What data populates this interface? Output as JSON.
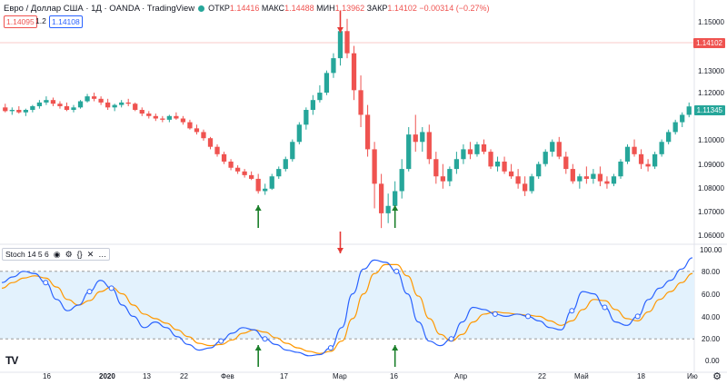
{
  "header": {
    "symbol_title": "Евро / Доллар США · 1Д · OANDA · TradingView",
    "ohlc": [
      {
        "label": "ОТКР",
        "value": "1.14416"
      },
      {
        "label": "МАКС",
        "value": "1.14488"
      },
      {
        "label": "МИН",
        "value": "1.13962"
      },
      {
        "label": "ЗАКР",
        "value": "1.14102"
      }
    ],
    "change": "−0.00314 (−0.27%)"
  },
  "trade": {
    "sell_price": "1.14095",
    "quantity": "1.2",
    "buy_price": "1.14108"
  },
  "price_axis": {
    "ticks": [
      "1.15000",
      "1.13000",
      "1.12000",
      "1.11000",
      "1.10000",
      "1.09000",
      "1.08000",
      "1.07000",
      "1.06000"
    ]
  },
  "price_labels": {
    "last_red": "1.14102",
    "current_green": "1.11345"
  },
  "indicator": {
    "label": "Stoch 14 5 6"
  },
  "stoch_axis": {
    "ticks": [
      "100.00",
      "80.00",
      "60.00",
      "40.00",
      "20.00",
      "0.00"
    ]
  },
  "time_axis": {
    "labels": [
      "16",
      "2020",
      "13",
      "22",
      "Фев",
      "17",
      "Мар",
      "16",
      "Апр",
      "22",
      "Май",
      "18",
      "Ию"
    ]
  },
  "colors": {
    "up": "#26a69a",
    "down": "#ef5350",
    "k_line": "#2962ff",
    "d_line": "#ff9800",
    "band": "#e3f2fd",
    "arrow_red": "#e53935",
    "arrow_green": "#1b7f2a"
  },
  "chart_data": [
    {
      "type": "candlestick",
      "title": "Евро / Доллар США · 1Д · OANDA",
      "ylim": [
        1.06,
        1.15
      ],
      "candles": [
        {
          "o": 1.113,
          "h": 1.1145,
          "l": 1.111,
          "c": 1.1115
        },
        {
          "o": 1.1115,
          "h": 1.113,
          "l": 1.11,
          "c": 1.112
        },
        {
          "o": 1.112,
          "h": 1.1135,
          "l": 1.1105,
          "c": 1.111
        },
        {
          "o": 1.111,
          "h": 1.1125,
          "l": 1.1095,
          "c": 1.112
        },
        {
          "o": 1.112,
          "h": 1.114,
          "l": 1.111,
          "c": 1.1135
        },
        {
          "o": 1.1135,
          "h": 1.116,
          "l": 1.1125,
          "c": 1.115
        },
        {
          "o": 1.115,
          "h": 1.1175,
          "l": 1.114,
          "c": 1.116
        },
        {
          "o": 1.116,
          "h": 1.117,
          "l": 1.1135,
          "c": 1.1145
        },
        {
          "o": 1.1145,
          "h": 1.1155,
          "l": 1.1125,
          "c": 1.1135
        },
        {
          "o": 1.1135,
          "h": 1.115,
          "l": 1.1115,
          "c": 1.112
        },
        {
          "o": 1.112,
          "h": 1.114,
          "l": 1.111,
          "c": 1.113
        },
        {
          "o": 1.113,
          "h": 1.116,
          "l": 1.1125,
          "c": 1.1155
        },
        {
          "o": 1.1155,
          "h": 1.1185,
          "l": 1.115,
          "c": 1.1175
        },
        {
          "o": 1.1175,
          "h": 1.119,
          "l": 1.1155,
          "c": 1.1165
        },
        {
          "o": 1.1165,
          "h": 1.1175,
          "l": 1.114,
          "c": 1.115
        },
        {
          "o": 1.115,
          "h": 1.1165,
          "l": 1.112,
          "c": 1.113
        },
        {
          "o": 1.113,
          "h": 1.1145,
          "l": 1.1115,
          "c": 1.114
        },
        {
          "o": 1.114,
          "h": 1.116,
          "l": 1.113,
          "c": 1.115
        },
        {
          "o": 1.115,
          "h": 1.1165,
          "l": 1.1135,
          "c": 1.1145
        },
        {
          "o": 1.1145,
          "h": 1.115,
          "l": 1.1115,
          "c": 1.112
        },
        {
          "o": 1.112,
          "h": 1.113,
          "l": 1.1095,
          "c": 1.1105
        },
        {
          "o": 1.1105,
          "h": 1.1115,
          "l": 1.1085,
          "c": 1.1095
        },
        {
          "o": 1.1095,
          "h": 1.1105,
          "l": 1.1075,
          "c": 1.1085
        },
        {
          "o": 1.1085,
          "h": 1.1095,
          "l": 1.107,
          "c": 1.108
        },
        {
          "o": 1.108,
          "h": 1.11,
          "l": 1.107,
          "c": 1.1095
        },
        {
          "o": 1.1095,
          "h": 1.111,
          "l": 1.108,
          "c": 1.1085
        },
        {
          "o": 1.1085,
          "h": 1.1095,
          "l": 1.106,
          "c": 1.107
        },
        {
          "o": 1.107,
          "h": 1.108,
          "l": 1.104,
          "c": 1.1045
        },
        {
          "o": 1.1045,
          "h": 1.106,
          "l": 1.102,
          "c": 1.103
        },
        {
          "o": 1.103,
          "h": 1.104,
          "l": 1.0995,
          "c": 1.1005
        },
        {
          "o": 1.1005,
          "h": 1.101,
          "l": 1.096,
          "c": 1.097
        },
        {
          "o": 1.097,
          "h": 1.098,
          "l": 1.093,
          "c": 1.094
        },
        {
          "o": 1.094,
          "h": 1.095,
          "l": 1.09,
          "c": 1.091
        },
        {
          "o": 1.091,
          "h": 1.092,
          "l": 1.0875,
          "c": 1.0885
        },
        {
          "o": 1.0885,
          "h": 1.0895,
          "l": 1.086,
          "c": 1.087
        },
        {
          "o": 1.087,
          "h": 1.088,
          "l": 1.0845,
          "c": 1.0855
        },
        {
          "o": 1.0855,
          "h": 1.087,
          "l": 1.0835,
          "c": 1.084
        },
        {
          "o": 1.084,
          "h": 1.086,
          "l": 1.078,
          "c": 1.079
        },
        {
          "o": 1.079,
          "h": 1.082,
          "l": 1.0775,
          "c": 1.08
        },
        {
          "o": 1.08,
          "h": 1.086,
          "l": 1.0795,
          "c": 1.085
        },
        {
          "o": 1.085,
          "h": 1.089,
          "l": 1.084,
          "c": 1.088
        },
        {
          "o": 1.088,
          "h": 1.093,
          "l": 1.087,
          "c": 1.092
        },
        {
          "o": 1.092,
          "h": 1.1,
          "l": 1.091,
          "c": 1.099
        },
        {
          "o": 1.099,
          "h": 1.107,
          "l": 1.098,
          "c": 1.106
        },
        {
          "o": 1.106,
          "h": 1.113,
          "l": 1.104,
          "c": 1.112
        },
        {
          "o": 1.112,
          "h": 1.118,
          "l": 1.11,
          "c": 1.116
        },
        {
          "o": 1.116,
          "h": 1.122,
          "l": 1.115,
          "c": 1.119
        },
        {
          "o": 1.119,
          "h": 1.128,
          "l": 1.118,
          "c": 1.127
        },
        {
          "o": 1.127,
          "h": 1.135,
          "l": 1.125,
          "c": 1.133
        },
        {
          "o": 1.133,
          "h": 1.145,
          "l": 1.13,
          "c": 1.144
        },
        {
          "o": 1.144,
          "h": 1.149,
          "l": 1.133,
          "c": 1.135
        },
        {
          "o": 1.135,
          "h": 1.138,
          "l": 1.116,
          "c": 1.12
        },
        {
          "o": 1.12,
          "h": 1.126,
          "l": 1.105,
          "c": 1.11
        },
        {
          "o": 1.11,
          "h": 1.114,
          "l": 1.093,
          "c": 1.096
        },
        {
          "o": 1.096,
          "h": 1.099,
          "l": 1.072,
          "c": 1.082
        },
        {
          "o": 1.082,
          "h": 1.086,
          "l": 1.064,
          "c": 1.07
        },
        {
          "o": 1.07,
          "h": 1.078,
          "l": 1.066,
          "c": 1.073
        },
        {
          "o": 1.073,
          "h": 1.083,
          "l": 1.07,
          "c": 1.079
        },
        {
          "o": 1.079,
          "h": 1.092,
          "l": 1.076,
          "c": 1.088
        },
        {
          "o": 1.088,
          "h": 1.105,
          "l": 1.087,
          "c": 1.102
        },
        {
          "o": 1.102,
          "h": 1.11,
          "l": 1.095,
          "c": 1.099
        },
        {
          "o": 1.099,
          "h": 1.105,
          "l": 1.095,
          "c": 1.103
        },
        {
          "o": 1.103,
          "h": 1.106,
          "l": 1.09,
          "c": 1.092
        },
        {
          "o": 1.092,
          "h": 1.095,
          "l": 1.082,
          "c": 1.085
        },
        {
          "o": 1.085,
          "h": 1.09,
          "l": 1.08,
          "c": 1.083
        },
        {
          "o": 1.083,
          "h": 1.089,
          "l": 1.081,
          "c": 1.088
        },
        {
          "o": 1.088,
          "h": 1.095,
          "l": 1.086,
          "c": 1.092
        },
        {
          "o": 1.092,
          "h": 1.098,
          "l": 1.09,
          "c": 1.096
        },
        {
          "o": 1.096,
          "h": 1.099,
          "l": 1.092,
          "c": 1.094
        },
        {
          "o": 1.094,
          "h": 1.099,
          "l": 1.093,
          "c": 1.098
        },
        {
          "o": 1.098,
          "h": 1.1,
          "l": 1.094,
          "c": 1.095
        },
        {
          "o": 1.095,
          "h": 1.096,
          "l": 1.088,
          "c": 1.089
        },
        {
          "o": 1.089,
          "h": 1.093,
          "l": 1.087,
          "c": 1.091
        },
        {
          "o": 1.091,
          "h": 1.093,
          "l": 1.086,
          "c": 1.087
        },
        {
          "o": 1.087,
          "h": 1.09,
          "l": 1.084,
          "c": 1.085
        },
        {
          "o": 1.085,
          "h": 1.088,
          "l": 1.08,
          "c": 1.082
        },
        {
          "o": 1.082,
          "h": 1.085,
          "l": 1.077,
          "c": 1.079
        },
        {
          "o": 1.079,
          "h": 1.086,
          "l": 1.078,
          "c": 1.085
        },
        {
          "o": 1.085,
          "h": 1.091,
          "l": 1.084,
          "c": 1.09
        },
        {
          "o": 1.09,
          "h": 1.096,
          "l": 1.089,
          "c": 1.095
        },
        {
          "o": 1.095,
          "h": 1.1,
          "l": 1.093,
          "c": 1.099
        },
        {
          "o": 1.099,
          "h": 1.101,
          "l": 1.092,
          "c": 1.093
        },
        {
          "o": 1.093,
          "h": 1.095,
          "l": 1.086,
          "c": 1.088
        },
        {
          "o": 1.088,
          "h": 1.09,
          "l": 1.082,
          "c": 1.083
        },
        {
          "o": 1.083,
          "h": 1.086,
          "l": 1.08,
          "c": 1.085
        },
        {
          "o": 1.085,
          "h": 1.089,
          "l": 1.082,
          "c": 1.084
        },
        {
          "o": 1.084,
          "h": 1.088,
          "l": 1.082,
          "c": 1.086
        },
        {
          "o": 1.086,
          "h": 1.089,
          "l": 1.081,
          "c": 1.083
        },
        {
          "o": 1.083,
          "h": 1.085,
          "l": 1.08,
          "c": 1.082
        },
        {
          "o": 1.082,
          "h": 1.086,
          "l": 1.081,
          "c": 1.085
        },
        {
          "o": 1.085,
          "h": 1.092,
          "l": 1.084,
          "c": 1.091
        },
        {
          "o": 1.091,
          "h": 1.098,
          "l": 1.09,
          "c": 1.097
        },
        {
          "o": 1.097,
          "h": 1.1,
          "l": 1.093,
          "c": 1.094
        },
        {
          "o": 1.094,
          "h": 1.096,
          "l": 1.088,
          "c": 1.09
        },
        {
          "o": 1.09,
          "h": 1.092,
          "l": 1.087,
          "c": 1.089
        },
        {
          "o": 1.089,
          "h": 1.095,
          "l": 1.088,
          "c": 1.094
        },
        {
          "o": 1.094,
          "h": 1.1,
          "l": 1.093,
          "c": 1.099
        },
        {
          "o": 1.099,
          "h": 1.104,
          "l": 1.098,
          "c": 1.103
        },
        {
          "o": 1.103,
          "h": 1.108,
          "l": 1.102,
          "c": 1.107
        },
        {
          "o": 1.107,
          "h": 1.111,
          "l": 1.105,
          "c": 1.11
        },
        {
          "o": 1.11,
          "h": 1.115,
          "l": 1.109,
          "c": 1.1134
        }
      ],
      "arrows": [
        {
          "type": "down",
          "index": 49,
          "color": "red"
        },
        {
          "type": "up",
          "index": 37,
          "color": "green"
        },
        {
          "type": "up",
          "index": 57,
          "color": "green"
        }
      ]
    },
    {
      "type": "line",
      "title": "Stoch 14 5 6",
      "ylim": [
        0,
        100
      ],
      "band": [
        20,
        80
      ],
      "series": [
        {
          "name": "%K",
          "values": [
            70,
            75,
            80,
            78,
            70,
            55,
            45,
            50,
            62,
            72,
            65,
            50,
            40,
            30,
            35,
            30,
            22,
            15,
            10,
            12,
            18,
            25,
            30,
            28,
            20,
            15,
            10,
            8,
            5,
            6,
            12,
            30,
            60,
            82,
            90,
            88,
            80,
            60,
            35,
            18,
            14,
            20,
            35,
            48,
            46,
            42,
            40,
            42,
            40,
            36,
            30,
            28,
            45,
            62,
            60,
            48,
            35,
            32,
            40,
            55,
            65,
            72,
            82,
            92
          ]
        },
        {
          "name": "%D",
          "values": [
            65,
            70,
            74,
            76,
            74,
            66,
            55,
            50,
            54,
            62,
            66,
            60,
            50,
            42,
            38,
            34,
            28,
            22,
            16,
            14,
            15,
            19,
            25,
            28,
            26,
            21,
            16,
            12,
            9,
            7,
            9,
            18,
            38,
            60,
            78,
            86,
            86,
            76,
            58,
            38,
            24,
            18,
            24,
            35,
            42,
            44,
            43,
            42,
            41,
            40,
            36,
            32,
            36,
            46,
            55,
            54,
            46,
            38,
            36,
            44,
            55,
            62,
            70,
            78
          ]
        }
      ]
    }
  ]
}
